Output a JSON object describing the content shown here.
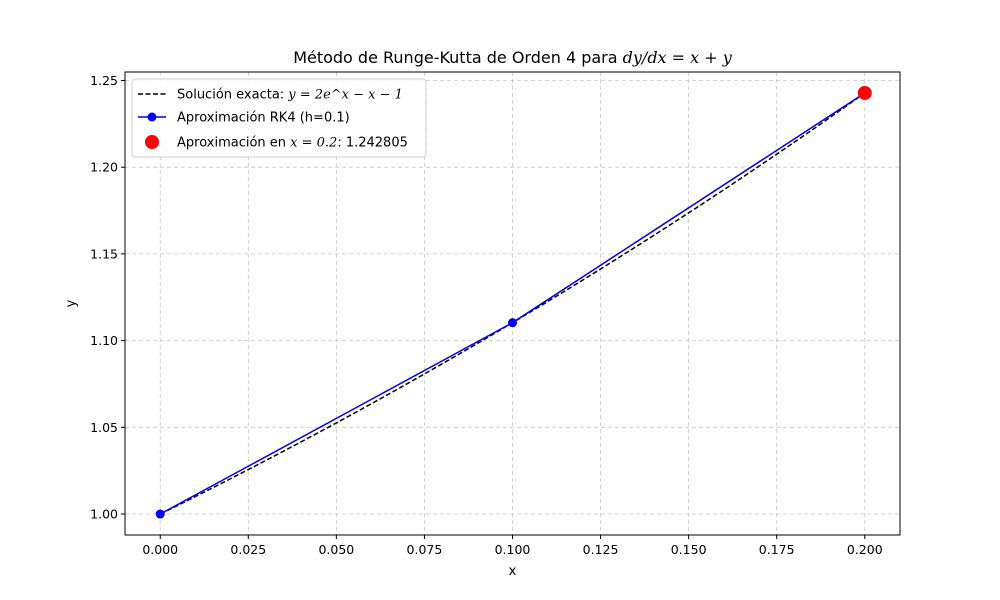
{
  "chart_data": {
    "type": "line",
    "title": {
      "prefix": "Método de Runge-Kutta de Orden 4 para ",
      "math": "dy/dx = x + y"
    },
    "xlabel": "x",
    "ylabel": "y",
    "xlim": [
      -0.01,
      0.21
    ],
    "ylim": [
      0.9879,
      1.2549
    ],
    "xticks": [
      0.0,
      0.025,
      0.05,
      0.075,
      0.1,
      0.125,
      0.15,
      0.175,
      0.2
    ],
    "xtick_labels": [
      "0.000",
      "0.025",
      "0.050",
      "0.075",
      "0.100",
      "0.125",
      "0.150",
      "0.175",
      "0.200"
    ],
    "yticks": [
      1.0,
      1.05,
      1.1,
      1.15,
      1.2,
      1.25
    ],
    "ytick_labels": [
      "1.00",
      "1.05",
      "1.10",
      "1.15",
      "1.20",
      "1.25"
    ],
    "grid": true,
    "legend_position": "top-left",
    "series": [
      {
        "name": "Solución exacta: ",
        "name_math": "y = 2e^x − x − 1",
        "style": "dashed",
        "color": "#000000",
        "function": "2*exp(x) - x - 1",
        "x_range": [
          0.0,
          0.2
        ]
      },
      {
        "name": "Aproximación RK4 (h=0.1)",
        "style": "solid-markers",
        "color": "#0000ff",
        "x": [
          0.0,
          0.1,
          0.2
        ],
        "y": [
          1.0,
          1.110342,
          1.242805
        ]
      },
      {
        "name": "Aproximación en ",
        "name_math": "x = 0.2",
        "name_suffix": ": 1.242805",
        "style": "point",
        "color": "#ff0000",
        "x": [
          0.2
        ],
        "y": [
          1.242805
        ]
      }
    ]
  }
}
